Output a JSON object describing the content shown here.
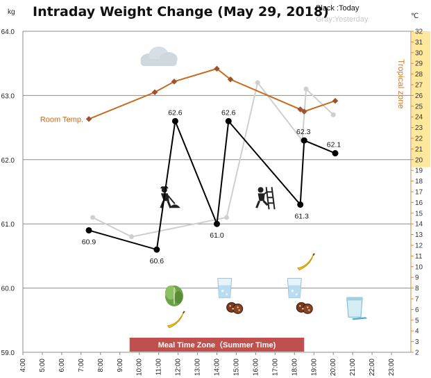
{
  "chart_data": {
    "type": "line",
    "title": "Intraday Weight Change (May 29, 2018)",
    "legend": {
      "today": "Black :Today",
      "yesterday": "Gray:Yesterday"
    },
    "y_left": {
      "unit": "kg",
      "min": 59.0,
      "max": 64.0,
      "ticks": [
        "59.0",
        "60.0",
        "61.0",
        "62.0",
        "63.0",
        "64.0"
      ]
    },
    "y_right": {
      "unit": "℃",
      "min": 2,
      "max": 32,
      "ticks": [
        2,
        3,
        4,
        5,
        6,
        7,
        8,
        9,
        10,
        11,
        12,
        13,
        14,
        15,
        16,
        17,
        18,
        19,
        20,
        21,
        22,
        23,
        24,
        25,
        26,
        27,
        28,
        29,
        30,
        31,
        32
      ]
    },
    "x_axis": {
      "min": 4,
      "max": 24,
      "ticks": [
        "4:00",
        "5:00",
        "6:00",
        "7:00",
        "8:00",
        "9:00",
        "10:00",
        "11:00",
        "12:00",
        "13:00",
        "14:00",
        "15:00",
        "16:00",
        "17:00",
        "18:00",
        "19:00",
        "20:00",
        "21:00",
        "22:00",
        "23:00"
      ]
    },
    "series": [
      {
        "name": "Today",
        "color": "#000000",
        "points": [
          {
            "x": 7.4,
            "y": 60.9,
            "label": "60.9"
          },
          {
            "x": 10.9,
            "y": 60.6,
            "label": "60.6"
          },
          {
            "x": 11.85,
            "y": 62.6,
            "label": "62.6"
          },
          {
            "x": 14.0,
            "y": 61.0,
            "label": "61.0"
          },
          {
            "x": 14.6,
            "y": 62.6,
            "label": "62.6"
          },
          {
            "x": 18.3,
            "y": 61.3,
            "label": "61.3"
          },
          {
            "x": 18.5,
            "y": 62.3,
            "label": "62.3"
          },
          {
            "x": 20.1,
            "y": 62.1,
            "label": "62.1"
          }
        ]
      },
      {
        "name": "Yesterday",
        "color": "#cfcfcf",
        "points": [
          {
            "x": 7.6,
            "y": 61.1
          },
          {
            "x": 9.6,
            "y": 60.8
          },
          {
            "x": 14.5,
            "y": 61.1
          },
          {
            "x": 16.1,
            "y": 63.2
          },
          {
            "x": 18.4,
            "y": 62.3
          },
          {
            "x": 18.6,
            "y": 63.1
          },
          {
            "x": 20.0,
            "y": 62.7
          }
        ]
      },
      {
        "name": "Room Temp.",
        "axis": "right",
        "color": "#c86a1e",
        "points": [
          {
            "x": 7.4,
            "y": 23.8
          },
          {
            "x": 10.8,
            "y": 26.3
          },
          {
            "x": 11.8,
            "y": 27.3
          },
          {
            "x": 14.0,
            "y": 28.5
          },
          {
            "x": 14.7,
            "y": 27.5
          },
          {
            "x": 18.3,
            "y": 24.7
          },
          {
            "x": 18.5,
            "y": 24.5
          },
          {
            "x": 20.1,
            "y": 25.5
          }
        ]
      }
    ],
    "annotations": {
      "room_temp_label": "Room Temp.",
      "tropical_zone": {
        "label": "Tropical zone",
        "from": 19.3,
        "to": 32
      },
      "meal_zone": {
        "label": "Meal Time Zone（Summer Time)",
        "from_x": 9.5,
        "to_x": 18.5
      }
    },
    "icons": [
      {
        "name": "cloud-icon",
        "x": 11.0,
        "y": 63.6
      },
      {
        "name": "gardening-icon",
        "x": 11.4,
        "y": 61.4
      },
      {
        "name": "climbing-icon",
        "x": 16.4,
        "y": 61.4
      },
      {
        "name": "lettuce-icon",
        "x": 11.8,
        "y": 59.9
      },
      {
        "name": "banana-icon",
        "x": 11.9,
        "y": 59.5
      },
      {
        "name": "water-glass-icon",
        "x": 14.4,
        "y": 60.0
      },
      {
        "name": "cookies-icon",
        "x": 14.9,
        "y": 59.7
      },
      {
        "name": "water-glass-icon",
        "x": 18.0,
        "y": 60.0
      },
      {
        "name": "cookies-icon",
        "x": 18.5,
        "y": 59.7
      },
      {
        "name": "banana-icon",
        "x": 18.6,
        "y": 60.4
      },
      {
        "name": "yogurt-cup-icon",
        "x": 21.1,
        "y": 59.7
      }
    ]
  }
}
